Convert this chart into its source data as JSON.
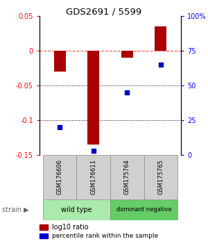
{
  "title": "GDS2691 / 5599",
  "samples": [
    "GSM176606",
    "GSM176611",
    "GSM175764",
    "GSM175765"
  ],
  "log10_ratio": [
    -0.03,
    -0.135,
    -0.01,
    0.035
  ],
  "percentile_rank": [
    20,
    3,
    45,
    65
  ],
  "ylim_left": [
    -0.15,
    0.05
  ],
  "ylim_right": [
    0,
    100
  ],
  "yticks_left": [
    -0.15,
    -0.1,
    -0.05,
    0.0,
    0.05
  ],
  "yticks_right": [
    0,
    25,
    50,
    75,
    100
  ],
  "ytick_labels_right": [
    "0",
    "25",
    "50",
    "75",
    "100%"
  ],
  "dotted_lines": [
    -0.05,
    -0.1
  ],
  "zero_line": 0.0,
  "bar_color": "#AA0000",
  "square_color": "#0000CC",
  "groups": [
    {
      "label": "wild type",
      "samples": [
        0,
        1
      ],
      "color": "#AAEAAA"
    },
    {
      "label": "dominant negative",
      "samples": [
        2,
        3
      ],
      "color": "#66CC66"
    }
  ],
  "legend_red_label": "log10 ratio",
  "legend_blue_label": "percentile rank within the sample",
  "bar_width": 0.35,
  "square_size": 18
}
